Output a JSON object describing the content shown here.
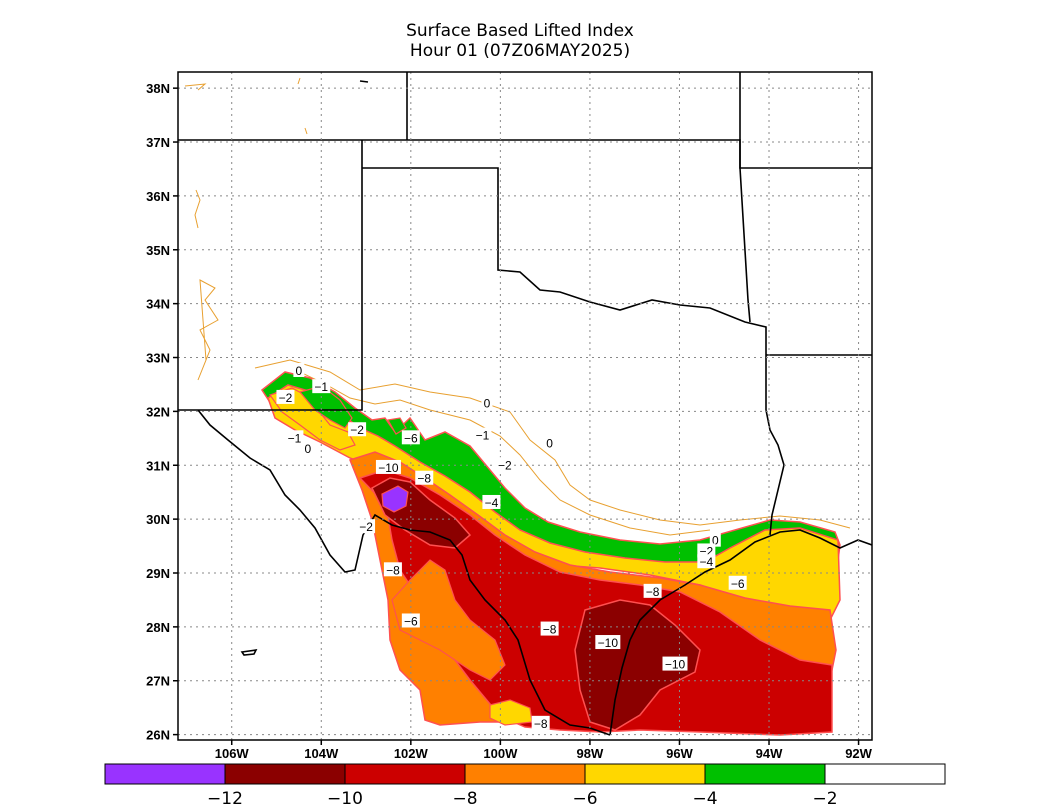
{
  "title": {
    "line1": "Surface Based Lifted Index",
    "line2": "Hour 01 (07Z06MAY2025)"
  },
  "axes": {
    "lat_labels": [
      "26N",
      "27N",
      "28N",
      "29N",
      "30N",
      "31N",
      "32N",
      "33N",
      "34N",
      "35N",
      "36N",
      "37N",
      "38N"
    ],
    "lon_labels": [
      "106W",
      "104W",
      "102W",
      "100W",
      "98W",
      "96W",
      "94W",
      "92W"
    ],
    "lat_range": [
      25.9,
      38.3
    ],
    "lon_range": [
      -107.2,
      -91.7
    ],
    "grid": "dotted"
  },
  "colorbar": {
    "tick_labels": [
      "−12",
      "−10",
      "−8",
      "−6",
      "−4",
      "−2"
    ],
    "bins": [
      {
        "color": "#9933ff"
      },
      {
        "color": "#8b0000"
      },
      {
        "color": "#cc0000"
      },
      {
        "color": "#ff8000"
      },
      {
        "color": "#ffd700"
      },
      {
        "color": "#00c000"
      },
      {
        "color": "#ffffff"
      }
    ]
  },
  "colors": {
    "zero_contour": "#e8a030",
    "border": "#000000",
    "contour_line": "#ff5050"
  },
  "contour_labels": [
    {
      "text": "0",
      "lon": -104.5,
      "lat": 32.75
    },
    {
      "text": "−1",
      "lon": -104.0,
      "lat": 32.45
    },
    {
      "text": "−2",
      "lon": -104.8,
      "lat": 32.25
    },
    {
      "text": "0",
      "lon": -100.3,
      "lat": 32.15
    },
    {
      "text": "−2",
      "lon": -103.2,
      "lat": 31.65
    },
    {
      "text": "−1",
      "lon": -104.6,
      "lat": 31.5
    },
    {
      "text": "0",
      "lon": -104.3,
      "lat": 31.3
    },
    {
      "text": "−6",
      "lon": -102.0,
      "lat": 31.5
    },
    {
      "text": "−1",
      "lon": -100.4,
      "lat": 31.55
    },
    {
      "text": "0",
      "lon": -98.9,
      "lat": 31.4
    },
    {
      "text": "−2",
      "lon": -99.9,
      "lat": 31.0
    },
    {
      "text": "−10",
      "lon": -102.5,
      "lat": 30.95
    },
    {
      "text": "−8",
      "lon": -101.7,
      "lat": 30.75
    },
    {
      "text": "−4",
      "lon": -100.2,
      "lat": 30.3
    },
    {
      "text": "−2",
      "lon": -103.0,
      "lat": 29.85
    },
    {
      "text": "0",
      "lon": -95.2,
      "lat": 29.6
    },
    {
      "text": "−2",
      "lon": -95.4,
      "lat": 29.4
    },
    {
      "text": "−4",
      "lon": -95.4,
      "lat": 29.2
    },
    {
      "text": "−8",
      "lon": -102.4,
      "lat": 29.05
    },
    {
      "text": "−6",
      "lon": -94.7,
      "lat": 28.8
    },
    {
      "text": "−8",
      "lon": -96.6,
      "lat": 28.65
    },
    {
      "text": "−6",
      "lon": -102.0,
      "lat": 28.1
    },
    {
      "text": "−8",
      "lon": -98.9,
      "lat": 27.95
    },
    {
      "text": "−10",
      "lon": -97.6,
      "lat": 27.7
    },
    {
      "text": "−10",
      "lon": -96.1,
      "lat": 27.3
    },
    {
      "text": "−8",
      "lon": -99.1,
      "lat": 26.2
    }
  ]
}
